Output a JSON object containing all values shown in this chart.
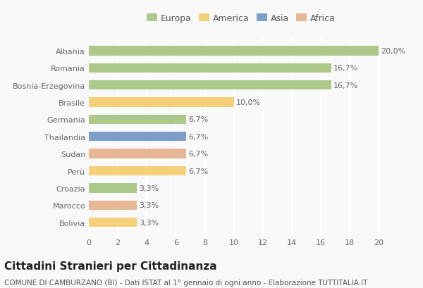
{
  "countries": [
    "Albania",
    "Romania",
    "Bosnia-Erzegovina",
    "Brasile",
    "Germania",
    "Thailandia",
    "Sudan",
    "Perù",
    "Croazia",
    "Marocco",
    "Bolivia"
  ],
  "values": [
    20.0,
    16.7,
    16.7,
    10.0,
    6.7,
    6.7,
    6.7,
    6.7,
    3.3,
    3.3,
    3.3
  ],
  "labels": [
    "20,0%",
    "16,7%",
    "16,7%",
    "10,0%",
    "6,7%",
    "6,7%",
    "6,7%",
    "6,7%",
    "3,3%",
    "3,3%",
    "3,3%"
  ],
  "colors": [
    "#adc98a",
    "#adc98a",
    "#adc98a",
    "#f5d07a",
    "#adc98a",
    "#7b9dc7",
    "#e8b896",
    "#f5d07a",
    "#adc98a",
    "#e8b896",
    "#f5d07a"
  ],
  "legend": [
    {
      "label": "Europa",
      "color": "#adc98a"
    },
    {
      "label": "America",
      "color": "#f5d07a"
    },
    {
      "label": "Asia",
      "color": "#7b9dc7"
    },
    {
      "label": "Africa",
      "color": "#e8b896"
    }
  ],
  "xlim": [
    0,
    21
  ],
  "xticks": [
    0,
    2,
    4,
    6,
    8,
    10,
    12,
    14,
    16,
    18,
    20
  ],
  "title": "Cittadini Stranieri per Cittadinanza",
  "subtitle": "COMUNE DI CAMBURZANO (BI) - Dati ISTAT al 1° gennaio di ogni anno - Elaborazione TUTTITALIA.IT",
  "background_color": "#f9f9f9",
  "grid_color": "#ffffff",
  "bar_height": 0.55,
  "title_fontsize": 11,
  "subtitle_fontsize": 7.5,
  "label_fontsize": 8,
  "tick_fontsize": 8,
  "legend_fontsize": 9
}
